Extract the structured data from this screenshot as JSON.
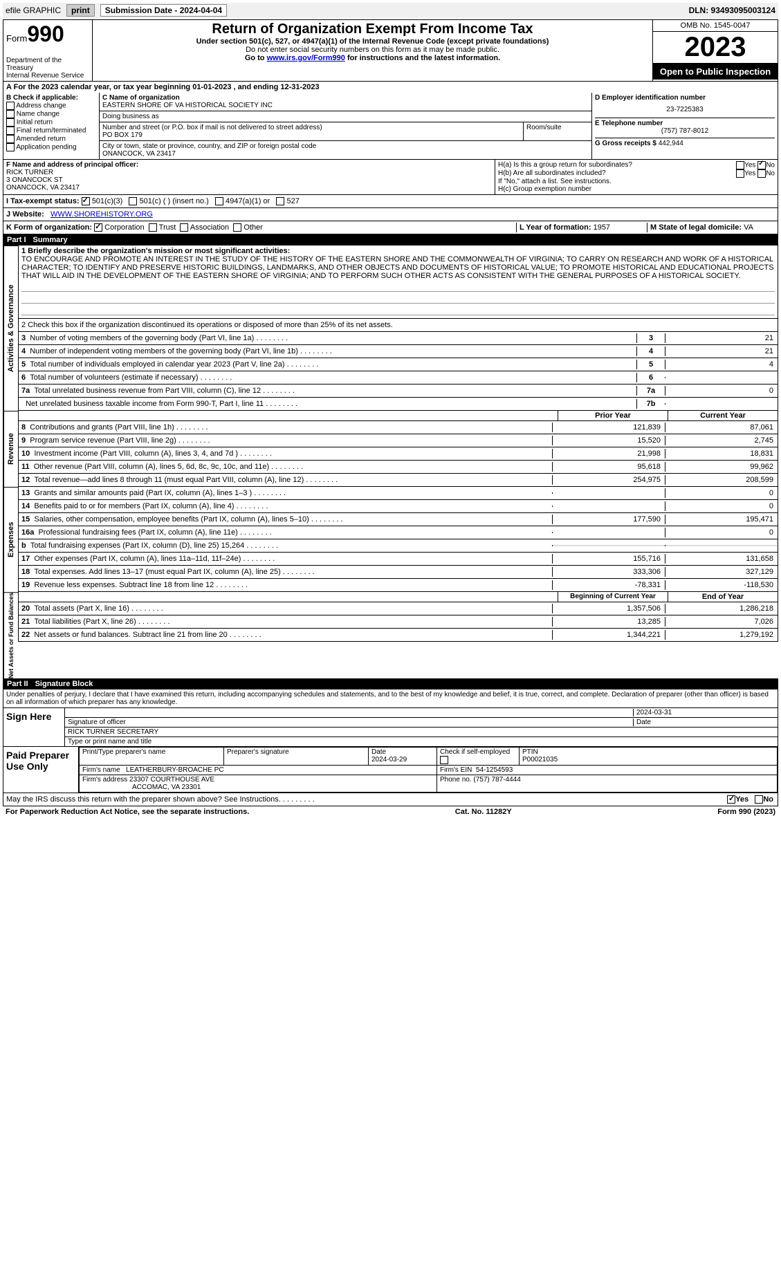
{
  "top_bar": {
    "efile_label": "efile GRAPHIC",
    "print_btn": "print",
    "submission_label": "Submission Date - 2024-04-04",
    "dln_label": "DLN: 93493095003124"
  },
  "header": {
    "form_word": "Form",
    "form_number": "990",
    "dept": "Department of the Treasury",
    "irs": "Internal Revenue Service",
    "title": "Return of Organization Exempt From Income Tax",
    "subtitle": "Under section 501(c), 527, or 4947(a)(1) of the Internal Revenue Code (except private foundations)",
    "warning": "Do not enter social security numbers on this form as it may be made public.",
    "goto_prefix": "Go to ",
    "goto_link": "www.irs.gov/Form990",
    "goto_suffix": " for instructions and the latest information.",
    "omb": "OMB No. 1545-0047",
    "year": "2023",
    "open": "Open to Public Inspection"
  },
  "line_a": "For the 2023 calendar year, or tax year beginning 01-01-2023    , and ending 12-31-2023",
  "section_b": {
    "heading": "B Check if applicable:",
    "items": [
      "Address change",
      "Name change",
      "Initial return",
      "Final return/terminated",
      "Amended return",
      "Application pending"
    ]
  },
  "section_c": {
    "name_label": "C Name of organization",
    "name": "EASTERN SHORE OF VA HISTORICAL SOCIETY INC",
    "dba_label": "Doing business as",
    "street_label": "Number and street (or P.O. box if mail is not delivered to street address)",
    "room_label": "Room/suite",
    "street": "PO BOX 179",
    "city_label": "City or town, state or province, country, and ZIP or foreign postal code",
    "city": "ONANCOCK, VA  23417"
  },
  "section_d": {
    "ein_label": "D Employer identification number",
    "ein": "23-7225383",
    "phone_label": "E Telephone number",
    "phone": "(757) 787-8012",
    "gross_label": "G Gross receipts $",
    "gross": "442,944"
  },
  "section_f": {
    "label": "F  Name and address of principal officer:",
    "name": "RICK TURNER",
    "addr1": "3 ONANCOCK ST",
    "addr2": "ONANCOCK, VA  23417"
  },
  "section_h": {
    "a_label": "H(a)  Is this a group return for subordinates?",
    "b_label": "H(b)  Are all subordinates included?",
    "b_note": "If \"No,\" attach a list. See instructions.",
    "c_label": "H(c)  Group exemption number",
    "yes": "Yes",
    "no": "No"
  },
  "line_i": {
    "prefix": "I    Tax-exempt status:",
    "opt1": "501(c)(3)",
    "opt2": "501(c) (  ) (insert no.)",
    "opt3": "4947(a)(1) or",
    "opt4": "527"
  },
  "line_j": {
    "prefix": "J    Website:",
    "url": "WWW.SHOREHISTORY.ORG"
  },
  "line_k": {
    "prefix": "K Form of organization:",
    "corp": "Corporation",
    "trust": "Trust",
    "assoc": "Association",
    "other": "Other"
  },
  "line_l": {
    "label": "L Year of formation:",
    "val": "1957"
  },
  "line_m": {
    "label": "M State of legal domicile:",
    "val": "VA"
  },
  "part1": {
    "label": "Part I",
    "title": "Summary"
  },
  "mission": {
    "label": "1  Briefly describe the organization's mission or most significant activities:",
    "text": "TO ENCOURAGE AND PROMOTE AN INTEREST IN THE STUDY OF THE HISTORY OF THE EASTERN SHORE AND THE COMMONWEALTH OF VIRGINIA; TO CARRY ON RESEARCH AND WORK OF A HISTORICAL CHARACTER; TO IDENTIFY AND PRESERVE HISTORIC BUILDINGS, LANDMARKS, AND OTHER OBJECTS AND DOCUMENTS OF HISTORICAL VALUE; TO PROMOTE HISTORICAL AND EDUCATIONAL PROJECTS THAT WILL AID IN THE DEVELOPMENT OF THE EASTERN SHORE OF VIRGINIA; AND TO PERFORM SUCH OTHER ACTS AS CONSISTENT WITH THE GENERAL PURPOSES OF A HISTORICAL SOCIETY."
  },
  "line2": "2  Check this box      if the organization discontinued its operations or disposed of more than 25% of its net assets.",
  "activities_lines": [
    {
      "n": "3",
      "label": "Number of voting members of the governing body (Part VI, line 1a)",
      "num": "3",
      "val": "21"
    },
    {
      "n": "4",
      "label": "Number of independent voting members of the governing body (Part VI, line 1b)",
      "num": "4",
      "val": "21"
    },
    {
      "n": "5",
      "label": "Total number of individuals employed in calendar year 2023 (Part V, line 2a)",
      "num": "5",
      "val": "4"
    },
    {
      "n": "6",
      "label": "Total number of volunteers (estimate if necessary)",
      "num": "6",
      "val": ""
    },
    {
      "n": "7a",
      "label": "Total unrelated business revenue from Part VIII, column (C), line 12",
      "num": "7a",
      "val": "0"
    },
    {
      "n": "",
      "label": "Net unrelated business taxable income from Form 990-T, Part I, line 11",
      "num": "7b",
      "val": ""
    }
  ],
  "year_headers": {
    "prior": "Prior Year",
    "current": "Current Year"
  },
  "revenue_lines": [
    {
      "n": "8",
      "label": "Contributions and grants (Part VIII, line 1h)",
      "prior": "121,839",
      "curr": "87,061"
    },
    {
      "n": "9",
      "label": "Program service revenue (Part VIII, line 2g)",
      "prior": "15,520",
      "curr": "2,745"
    },
    {
      "n": "10",
      "label": "Investment income (Part VIII, column (A), lines 3, 4, and 7d )",
      "prior": "21,998",
      "curr": "18,831"
    },
    {
      "n": "11",
      "label": "Other revenue (Part VIII, column (A), lines 5, 6d, 8c, 9c, 10c, and 11e)",
      "prior": "95,618",
      "curr": "99,962"
    },
    {
      "n": "12",
      "label": "Total revenue—add lines 8 through 11 (must equal Part VIII, column (A), line 12)",
      "prior": "254,975",
      "curr": "208,599"
    }
  ],
  "expense_lines": [
    {
      "n": "13",
      "label": "Grants and similar amounts paid (Part IX, column (A), lines 1–3 )",
      "prior": "",
      "curr": "0"
    },
    {
      "n": "14",
      "label": "Benefits paid to or for members (Part IX, column (A), line 4)",
      "prior": "",
      "curr": "0"
    },
    {
      "n": "15",
      "label": "Salaries, other compensation, employee benefits (Part IX, column (A), lines 5–10)",
      "prior": "177,590",
      "curr": "195,471"
    },
    {
      "n": "16a",
      "label": "Professional fundraising fees (Part IX, column (A), line 11e)",
      "prior": "",
      "curr": "0"
    },
    {
      "n": "b",
      "label": "Total fundraising expenses (Part IX, column (D), line 25) 15,264",
      "prior": "grey",
      "curr": "grey"
    },
    {
      "n": "17",
      "label": "Other expenses (Part IX, column (A), lines 11a–11d, 11f–24e)",
      "prior": "155,716",
      "curr": "131,658"
    },
    {
      "n": "18",
      "label": "Total expenses. Add lines 13–17 (must equal Part IX, column (A), line 25)",
      "prior": "333,306",
      "curr": "327,129"
    },
    {
      "n": "19",
      "label": "Revenue less expenses. Subtract line 18 from line 12",
      "prior": "-78,331",
      "curr": "-118,530"
    }
  ],
  "balance_headers": {
    "begin": "Beginning of Current Year",
    "end": "End of Year"
  },
  "balance_lines": [
    {
      "n": "20",
      "label": "Total assets (Part X, line 16)",
      "prior": "1,357,506",
      "curr": "1,286,218"
    },
    {
      "n": "21",
      "label": "Total liabilities (Part X, line 26)",
      "prior": "13,285",
      "curr": "7,026"
    },
    {
      "n": "22",
      "label": "Net assets or fund balances. Subtract line 21 from line 20",
      "prior": "1,344,221",
      "curr": "1,279,192"
    }
  ],
  "side_labels": {
    "gov": "Activities & Governance",
    "rev": "Revenue",
    "exp": "Expenses",
    "bal": "Net Assets or Fund Balances"
  },
  "part2": {
    "label": "Part II",
    "title": "Signature Block"
  },
  "perjury": "Under penalties of perjury, I declare that I have examined this return, including accompanying schedules and statements, and to the best of my knowledge and belief, it is true, correct, and complete. Declaration of preparer (other than officer) is based on all information of which preparer has any knowledge.",
  "sign_here": {
    "label": "Sign Here",
    "sig_label": "Signature of officer",
    "date_label": "Date",
    "date": "2024-03-31",
    "name": "RICK TURNER  SECRETARY",
    "name_label": "Type or print name and title"
  },
  "preparer": {
    "label": "Paid Preparer Use Only",
    "name_label": "Print/Type preparer's name",
    "sig_label": "Preparer's signature",
    "date_label": "Date",
    "date": "2024-03-29",
    "self_label": "Check       if self-employed",
    "ptin_label": "PTIN",
    "ptin": "P00021035",
    "firm_name_label": "Firm's name",
    "firm_name": "LEATHERBURY-BROACHE PC",
    "firm_ein_label": "Firm's EIN",
    "firm_ein": "54-1254593",
    "firm_addr_label": "Firm's address",
    "firm_addr1": "23307 COURTHOUSE AVE",
    "firm_addr2": "ACCOMAC, VA  23301",
    "phone_label": "Phone no.",
    "phone": "(757) 787-4444"
  },
  "irs_discuss": {
    "text": "May the IRS discuss this return with the preparer shown above? See Instructions.",
    "yes": "Yes",
    "no": "No"
  },
  "footer": {
    "left": "For Paperwork Reduction Act Notice, see the separate instructions.",
    "center": "Cat. No. 11282Y",
    "right": "Form 990 (2023)"
  }
}
